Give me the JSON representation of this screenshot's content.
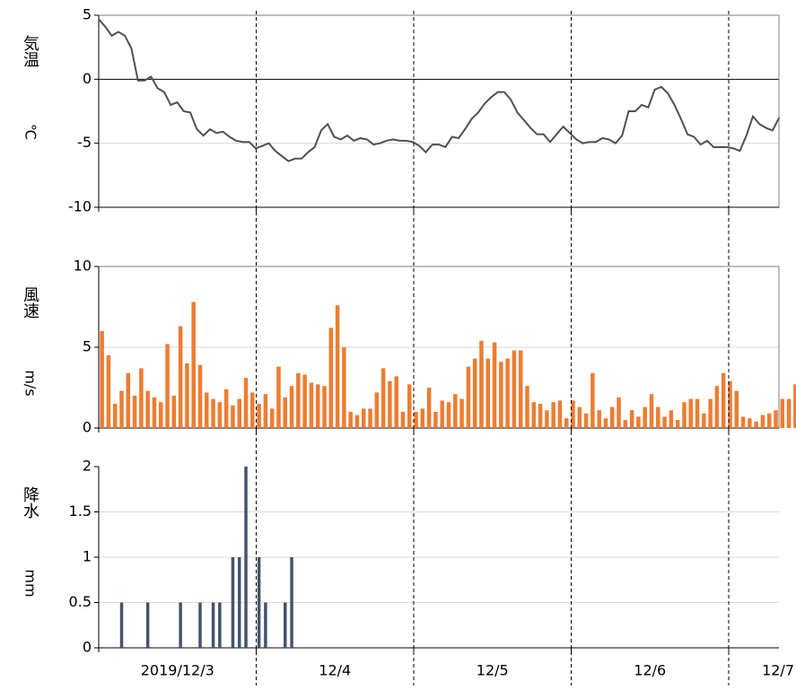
{
  "chart_data": [
    {
      "type": "line",
      "ylabel": "気温",
      "yunit": "℃",
      "color": "#505050",
      "ylim": [
        -10,
        5
      ],
      "yticks": [
        5,
        0,
        -5,
        -10
      ],
      "grid": true,
      "values": [
        4.7,
        4.1,
        3.4,
        3.7,
        3.4,
        2.4,
        -0.1,
        -0.1,
        0.2,
        -0.7,
        -1.0,
        -2.0,
        -1.8,
        -2.5,
        -2.6,
        -3.9,
        -4.4,
        -3.9,
        -4.2,
        -4.1,
        -4.5,
        -4.8,
        -4.9,
        -4.9,
        -5.4,
        -5.2,
        -5.0,
        -5.6,
        -6.0,
        -6.4,
        -6.2,
        -6.2,
        -5.7,
        -5.3,
        -4.0,
        -3.5,
        -4.5,
        -4.7,
        -4.4,
        -4.8,
        -4.6,
        -4.7,
        -5.1,
        -5.0,
        -4.8,
        -4.7,
        -4.8,
        -4.8,
        -4.9,
        -5.2,
        -5.7,
        -5.1,
        -5.1,
        -5.3,
        -4.5,
        -4.6,
        -3.9,
        -3.1,
        -2.6,
        -1.9,
        -1.4,
        -1.0,
        -1.0,
        -1.6,
        -2.6,
        -3.2,
        -3.8,
        -4.3,
        -4.3,
        -4.9,
        -4.3,
        -3.7,
        -4.2,
        -4.7,
        -5.0,
        -4.9,
        -4.9,
        -4.6,
        -4.7,
        -5.0,
        -4.4,
        -2.5,
        -2.5,
        -2.0,
        -2.2,
        -0.8,
        -0.6,
        -1.1,
        -2.0,
        -3.1,
        -4.3,
        -4.5,
        -5.1,
        -4.8,
        -5.3,
        -5.3,
        -5.3,
        -5.4,
        -5.6,
        -4.4,
        -2.9,
        -3.5,
        -3.8,
        -4.0,
        -3.0
      ]
    },
    {
      "type": "bar",
      "ylabel": "風速",
      "yunit": "m/s",
      "color": "#ed7d31",
      "ylim": [
        0,
        10
      ],
      "yticks": [
        0,
        5,
        10
      ],
      "grid": true,
      "values": [
        6.0,
        4.5,
        1.5,
        2.3,
        3.4,
        2.0,
        3.7,
        2.3,
        1.9,
        1.6,
        5.2,
        2.0,
        6.3,
        4.0,
        7.8,
        3.9,
        2.2,
        1.8,
        1.6,
        2.4,
        1.4,
        1.8,
        3.1,
        2.2,
        1.5,
        2.1,
        1.2,
        3.8,
        1.9,
        2.6,
        3.4,
        3.3,
        2.8,
        2.7,
        2.6,
        6.2,
        7.6,
        5.0,
        1.0,
        0.8,
        1.2,
        1.2,
        2.2,
        3.7,
        2.9,
        3.2,
        1.0,
        2.7,
        1.0,
        1.2,
        2.5,
        1.0,
        1.7,
        1.6,
        2.1,
        1.8,
        3.8,
        4.3,
        5.4,
        4.3,
        5.3,
        4.1,
        4.3,
        4.8,
        4.8,
        2.6,
        1.6,
        1.5,
        1.1,
        1.6,
        1.7,
        0.6,
        1.7,
        1.3,
        0.9,
        3.4,
        1.1,
        0.6,
        1.3,
        1.9,
        0.5,
        1.1,
        0.7,
        1.3,
        2.1,
        1.3,
        0.7,
        1.1,
        0.5,
        1.6,
        1.8,
        1.8,
        0.9,
        1.8,
        2.6,
        3.4,
        2.9,
        2.3,
        0.7,
        0.6,
        0.4,
        0.8,
        0.9,
        1.1,
        1.8,
        1.8,
        2.7,
        3.1,
        4.8,
        4.0,
        2.8,
        3.2,
        3.1
      ]
    },
    {
      "type": "bar",
      "ylabel": "降水",
      "yunit": "mm",
      "color": "#44546a",
      "ylim": [
        0,
        2
      ],
      "yticks": [
        0,
        0.5,
        1,
        1.5,
        2
      ],
      "grid": true,
      "values": [
        0,
        0,
        0,
        0.5,
        0,
        0,
        0,
        0.5,
        0,
        0,
        0,
        0,
        0.5,
        0,
        0,
        0.5,
        0,
        0.5,
        0.5,
        0,
        1,
        1,
        2,
        0,
        1,
        0.5,
        0,
        0,
        0.5,
        1
      ],
      "x_labels": [
        "2019/12/3",
        "12/4",
        "12/5",
        "12/6",
        "12/7"
      ]
    }
  ]
}
